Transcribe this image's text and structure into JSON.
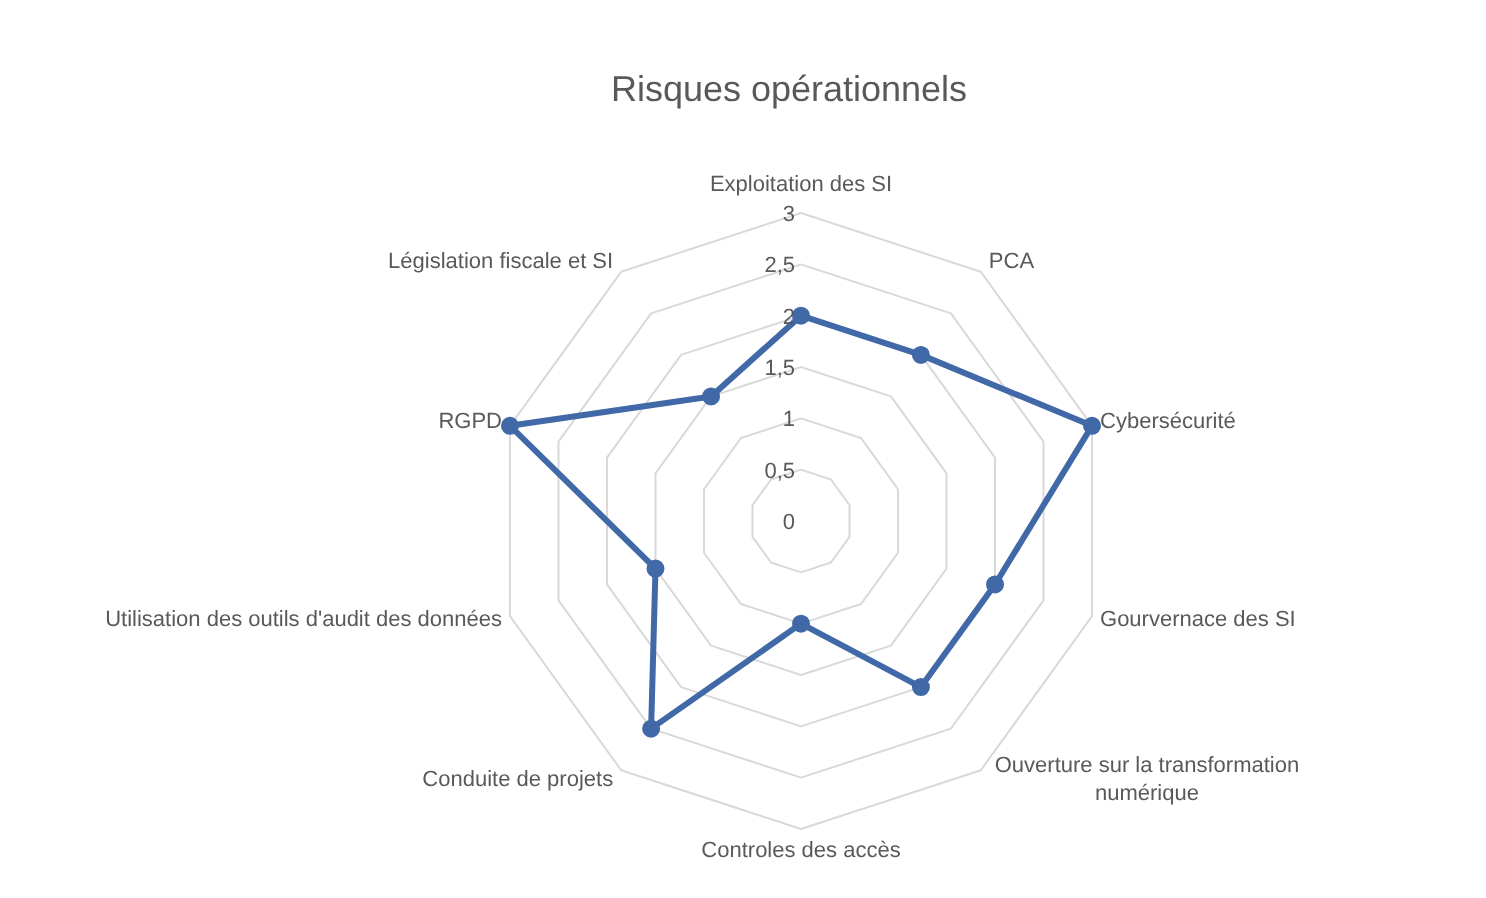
{
  "chart_data": {
    "type": "radar",
    "title": "Risques opérationnels",
    "categories": [
      "Exploitation des SI",
      "PCA",
      "Cybersécurité",
      "Gourvernace des SI",
      "Ouverture sur la transformation numérique",
      "Controles des accès",
      "Conduite de projets",
      "Utilisation des outils d'audit des données",
      "RGPD",
      "Législation fiscale et SI"
    ],
    "series": [
      {
        "color": "#4169a8",
        "values": [
          2,
          2,
          3,
          2,
          2,
          1,
          2.5,
          1.5,
          3,
          1.5
        ]
      }
    ],
    "ylim": [
      0,
      3
    ],
    "yticks": [
      {
        "value": 0,
        "label": "0"
      },
      {
        "value": 0.5,
        "label": "0,5"
      },
      {
        "value": 1,
        "label": "1"
      },
      {
        "value": 1.5,
        "label": "1,5"
      },
      {
        "value": 2,
        "label": "2"
      },
      {
        "value": 2.5,
        "label": "2,5"
      },
      {
        "value": 3,
        "label": "3"
      }
    ],
    "grid": true,
    "marker": "circle",
    "line_style": "solid"
  }
}
